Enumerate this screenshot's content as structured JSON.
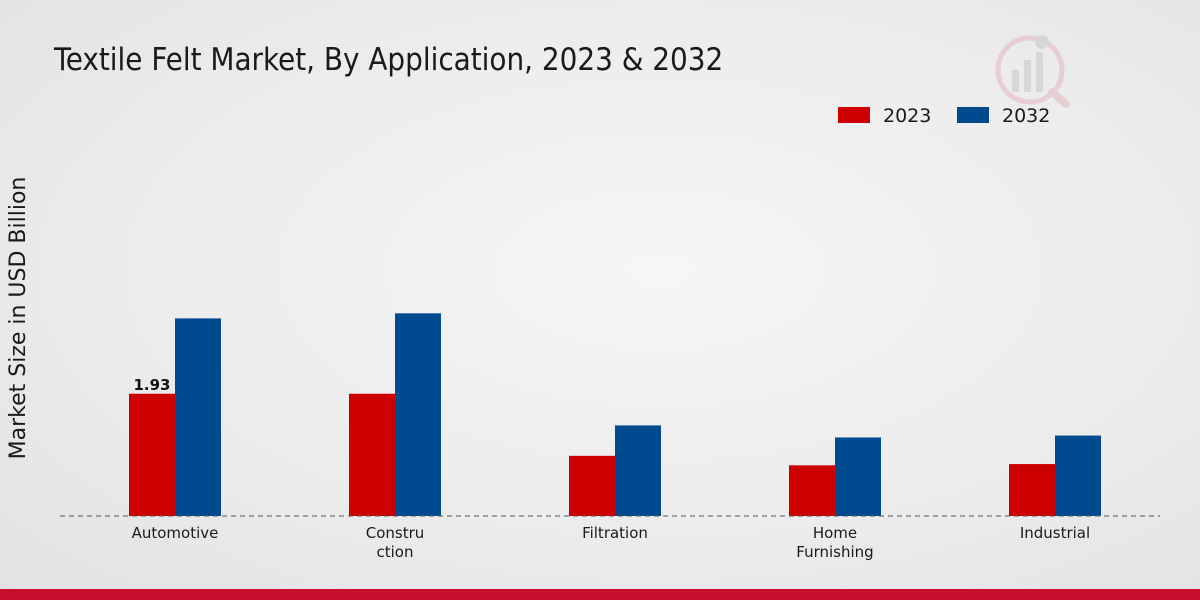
{
  "chart_data": {
    "type": "bar",
    "title": "Textile Felt Market, By Application, 2023 & 2032",
    "xlabel": "",
    "ylabel": "Market Size in USD Billion",
    "categories": [
      [
        "Automotive"
      ],
      [
        "Constru",
        "ction"
      ],
      [
        "Filtration"
      ],
      [
        "Home",
        "Furnishing"
      ],
      [
        "Industrial"
      ]
    ],
    "series": [
      {
        "name": "2023",
        "color": "#cc0000",
        "values": [
          1.93,
          1.93,
          0.95,
          0.8,
          0.82
        ]
      },
      {
        "name": "2032",
        "color": "#004a8f",
        "values": [
          3.12,
          3.2,
          1.43,
          1.24,
          1.27
        ]
      }
    ],
    "data_labels": [
      {
        "series": 0,
        "index": 0,
        "text": "1.93"
      }
    ],
    "ylim": [
      0,
      6
    ],
    "grid": false,
    "legend_position": "top-right"
  },
  "colors": {
    "accent_bar": "#c8102e",
    "baseline": "#555555"
  }
}
